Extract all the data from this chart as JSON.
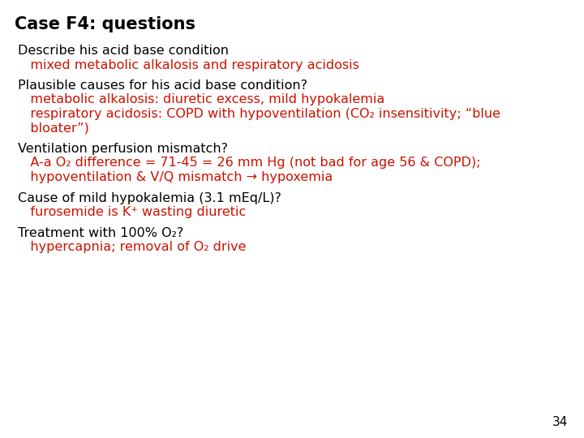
{
  "title": "Case F4: questions",
  "background_color": "#ffffff",
  "title_color": "#000000",
  "title_fontsize": 15,
  "body_fontsize": 11.5,
  "black": "#000000",
  "red": "#cc1100",
  "page_number": "34",
  "blocks": [
    {
      "question": "Describe his acid base condition",
      "answers": [
        "   mixed metabolic alkalosis and respiratory acidosis"
      ]
    },
    {
      "question": "Plausible causes for his acid base condition?",
      "answers": [
        "   metabolic alkalosis: diuretic excess, mild hypokalemia",
        "   respiratory acidosis: COPD with hypoventilation (CO₂ insensitivity; “blue",
        "   bloater”)"
      ]
    },
    {
      "question": "Ventilation perfusion mismatch?",
      "answers": [
        "   A-a O₂ difference = 71-45 = 26 mm Hg (not bad for age 56 & COPD);",
        "   hypoventilation & V/Q mismatch → hypoxemia"
      ]
    },
    {
      "question": "Cause of mild hypokalemia (3.1 mEq/L)?",
      "answers": [
        "   furosemide is K⁺ wasting diuretic"
      ]
    },
    {
      "question": "Treatment with 100% O₂?",
      "answers": [
        "   hypercapnia; removal of O₂ drive"
      ]
    }
  ]
}
